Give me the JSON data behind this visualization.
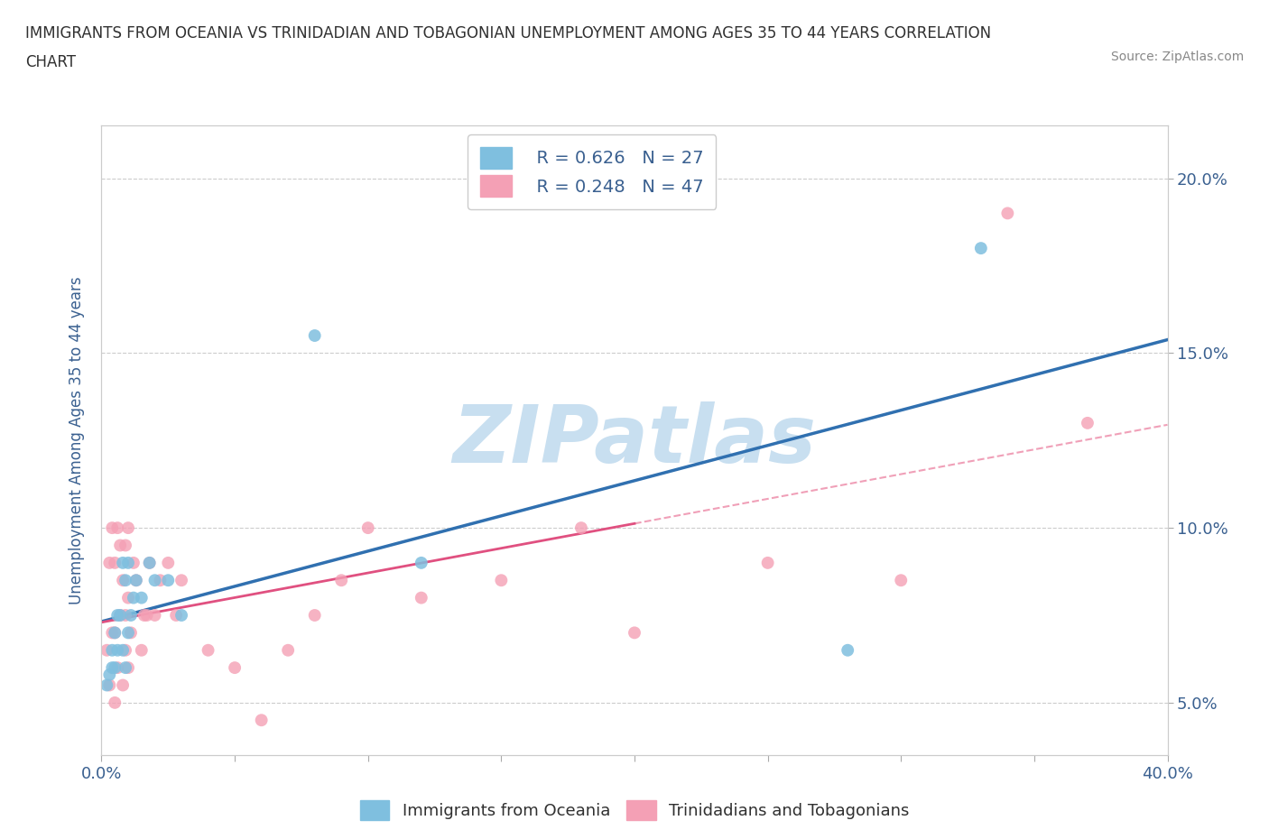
{
  "title_line1": "IMMIGRANTS FROM OCEANIA VS TRINIDADIAN AND TOBAGONIAN UNEMPLOYMENT AMONG AGES 35 TO 44 YEARS CORRELATION",
  "title_line2": "CHART",
  "source": "Source: ZipAtlas.com",
  "ylabel": "Unemployment Among Ages 35 to 44 years",
  "xlim": [
    0.0,
    0.4
  ],
  "ylim": [
    0.035,
    0.215
  ],
  "color_blue": "#7fbfdf",
  "color_pink": "#f4a0b5",
  "color_blue_line": "#3070b0",
  "color_pink_line": "#e05080",
  "color_dashed": "#f0a0b8",
  "watermark": "ZIPatlas",
  "watermark_color": "#c8dff0",
  "blue_scatter_x": [
    0.002,
    0.003,
    0.004,
    0.004,
    0.005,
    0.005,
    0.006,
    0.006,
    0.007,
    0.008,
    0.008,
    0.009,
    0.009,
    0.01,
    0.01,
    0.011,
    0.012,
    0.013,
    0.015,
    0.018,
    0.02,
    0.025,
    0.03,
    0.08,
    0.12,
    0.28,
    0.33
  ],
  "blue_scatter_y": [
    0.055,
    0.058,
    0.06,
    0.065,
    0.06,
    0.07,
    0.065,
    0.075,
    0.075,
    0.065,
    0.09,
    0.06,
    0.085,
    0.07,
    0.09,
    0.075,
    0.08,
    0.085,
    0.08,
    0.09,
    0.085,
    0.085,
    0.075,
    0.155,
    0.09,
    0.065,
    0.18
  ],
  "pink_scatter_x": [
    0.002,
    0.003,
    0.003,
    0.004,
    0.004,
    0.005,
    0.005,
    0.005,
    0.006,
    0.006,
    0.007,
    0.007,
    0.008,
    0.008,
    0.009,
    0.009,
    0.009,
    0.01,
    0.01,
    0.01,
    0.011,
    0.012,
    0.013,
    0.015,
    0.016,
    0.017,
    0.018,
    0.02,
    0.022,
    0.025,
    0.028,
    0.03,
    0.04,
    0.05,
    0.06,
    0.07,
    0.08,
    0.09,
    0.1,
    0.12,
    0.15,
    0.18,
    0.2,
    0.25,
    0.3,
    0.34,
    0.37
  ],
  "pink_scatter_y": [
    0.065,
    0.055,
    0.09,
    0.07,
    0.1,
    0.05,
    0.07,
    0.09,
    0.06,
    0.1,
    0.075,
    0.095,
    0.055,
    0.085,
    0.065,
    0.075,
    0.095,
    0.06,
    0.08,
    0.1,
    0.07,
    0.09,
    0.085,
    0.065,
    0.075,
    0.075,
    0.09,
    0.075,
    0.085,
    0.09,
    0.075,
    0.085,
    0.065,
    0.06,
    0.045,
    0.065,
    0.075,
    0.085,
    0.1,
    0.08,
    0.085,
    0.1,
    0.07,
    0.09,
    0.085,
    0.19,
    0.13
  ],
  "title_fontsize": 12,
  "axis_label_color": "#3a6090",
  "tick_color": "#3a6090",
  "label_color": "#303030"
}
